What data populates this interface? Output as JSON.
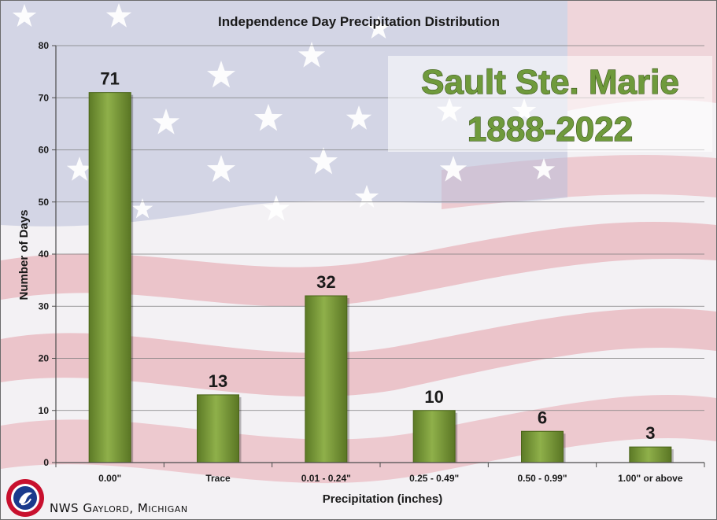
{
  "chart_data": {
    "type": "bar",
    "title": "Independence Day Precipitation Distribution",
    "xlabel": "Precipitation (inches)",
    "ylabel": "Number of Days",
    "categories": [
      "0.00\"",
      "Trace",
      "0.01 - 0.24\"",
      "0.25 - 0.49\"",
      "0.50 - 0.99\"",
      "1.00\" or above"
    ],
    "values": [
      71,
      13,
      32,
      10,
      6,
      3
    ],
    "ylim": [
      0,
      80
    ],
    "yticks": [
      0,
      10,
      20,
      30,
      40,
      50,
      60,
      70,
      80
    ],
    "grid": true,
    "bar_color": "#7a9a3a",
    "annotations": {
      "location": "Sault Ste. Marie",
      "period": "1888-2022"
    }
  },
  "footer": {
    "credit": "NWS Gaylord, Michigan",
    "logo_icon": "nws-logo-icon"
  },
  "background": {
    "theme": "american-flag",
    "colors": {
      "red": "#d9566a",
      "blue": "#4a5aa0",
      "white": "#ffffff"
    }
  }
}
